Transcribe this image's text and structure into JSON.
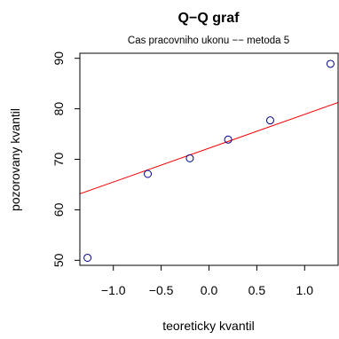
{
  "chart_data": {
    "type": "scatter",
    "title": "Q−Q graf",
    "subtitle": "Cas pracovniho ukonu −− metoda 5",
    "xlabel": "teoreticky kvantil",
    "ylabel": "pozorovany kvantil",
    "xlim": [
      -1.35,
      1.35
    ],
    "ylim": [
      49,
      91
    ],
    "x_ticks": [
      -1.0,
      -0.5,
      0.0,
      0.5,
      1.0
    ],
    "x_tick_labels": [
      "−1.0",
      "−0.5",
      "0.0",
      "0.5",
      "1.0"
    ],
    "y_ticks": [
      50,
      60,
      70,
      80,
      90
    ],
    "y_tick_labels": [
      "50",
      "60",
      "70",
      "80",
      "90"
    ],
    "points": {
      "x": [
        -1.27,
        -0.64,
        -0.2,
        0.2,
        0.64,
        1.27
      ],
      "y": [
        50.5,
        67.1,
        70.2,
        73.9,
        77.7,
        88.9
      ],
      "color": "#00008b"
    },
    "reference_line": {
      "intercept": 72.2,
      "slope": 6.7,
      "color": "#ff0000"
    },
    "grid": false
  }
}
